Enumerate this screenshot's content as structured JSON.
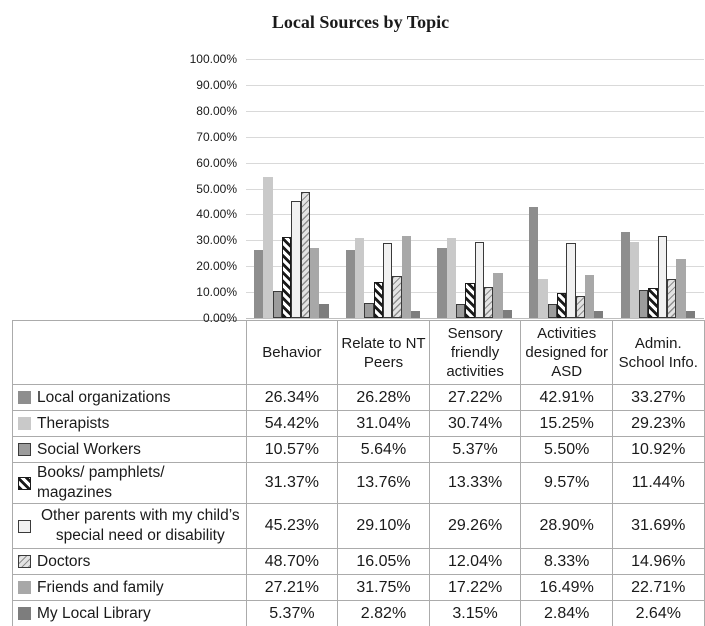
{
  "chart_data": {
    "type": "bar",
    "title": "Local Sources by Topic",
    "categories": [
      "Behavior",
      "Relate to NT Peers",
      "Sensory friendly activities",
      "Activities designed for ASD",
      "Admin. School Info."
    ],
    "series": [
      {
        "name": "Local organizations",
        "values": [
          26.34,
          26.28,
          27.22,
          42.91,
          33.27
        ],
        "fill": "#8E8E8E",
        "border": null,
        "hatch": null
      },
      {
        "name": "Therapists",
        "values": [
          54.42,
          31.04,
          30.74,
          15.25,
          29.23
        ],
        "fill": "#C9C9C9",
        "border": null,
        "hatch": null
      },
      {
        "name": "Social Workers",
        "values": [
          10.57,
          5.64,
          5.37,
          5.5,
          10.92
        ],
        "fill": "#9C9C9C",
        "border": "#3A3A3A",
        "hatch": null
      },
      {
        "name": "Books/ pamphlets/ magazines",
        "values": [
          31.37,
          13.76,
          13.33,
          9.57,
          11.44
        ],
        "fill": "#FFFFFF",
        "border": "#1A1A1A",
        "hatch": {
          "angle": 45,
          "color": "#1A1A1A",
          "thickness": 2.6,
          "gap": 3.4
        }
      },
      {
        "name": "Other parents with my child’s special need or disability",
        "values": [
          45.23,
          29.1,
          29.26,
          28.9,
          31.69
        ],
        "fill": "#F1F1F1",
        "border": "#3A3A3A",
        "hatch": null
      },
      {
        "name": "Doctors",
        "values": [
          48.7,
          16.05,
          12.04,
          8.33,
          14.96
        ],
        "fill": "#E3E3E3",
        "border": "#3A3A3A",
        "hatch": {
          "angle": 135,
          "color": "#8F8F8F",
          "thickness": 1.4,
          "gap": 3.2
        }
      },
      {
        "name": "Friends and family",
        "values": [
          27.21,
          31.75,
          17.22,
          16.49,
          22.71
        ],
        "fill": "#A8A8A8",
        "border": null,
        "hatch": null
      },
      {
        "name": "My Local Library",
        "values": [
          5.37,
          2.82,
          3.15,
          2.84,
          2.64
        ],
        "fill": "#7D7D7D",
        "border": null,
        "hatch": null
      }
    ],
    "ylim": [
      0,
      100
    ],
    "ytick_step": 10,
    "ytick_labels": [
      "0.00%",
      "10.00%",
      "20.00%",
      "30.00%",
      "40.00%",
      "50.00%",
      "60.00%",
      "70.00%",
      "80.00%",
      "90.00%",
      "100.00%"
    ],
    "value_suffix": "%",
    "grid": true,
    "legend_position": "table-left-column"
  },
  "colors": {
    "gridline": "#D9D9D9",
    "axis_line": "#BFBFBF",
    "table_border": "#ABABAB",
    "text": "#1A1A1A",
    "background": "#FFFFFF"
  }
}
